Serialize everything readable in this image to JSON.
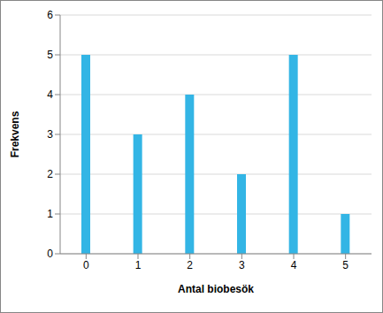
{
  "chart_data": {
    "type": "bar",
    "x_label": "Antal biobesök",
    "y_label": "Frekvens",
    "categories": [
      "0",
      "1",
      "2",
      "3",
      "4",
      "5"
    ],
    "values": [
      5,
      3,
      4,
      2,
      5,
      1
    ],
    "color": "#33b5e5",
    "ylim": [
      0,
      6
    ],
    "yticks": [
      0,
      1,
      2,
      3,
      4,
      5,
      6
    ],
    "grid": true
  }
}
